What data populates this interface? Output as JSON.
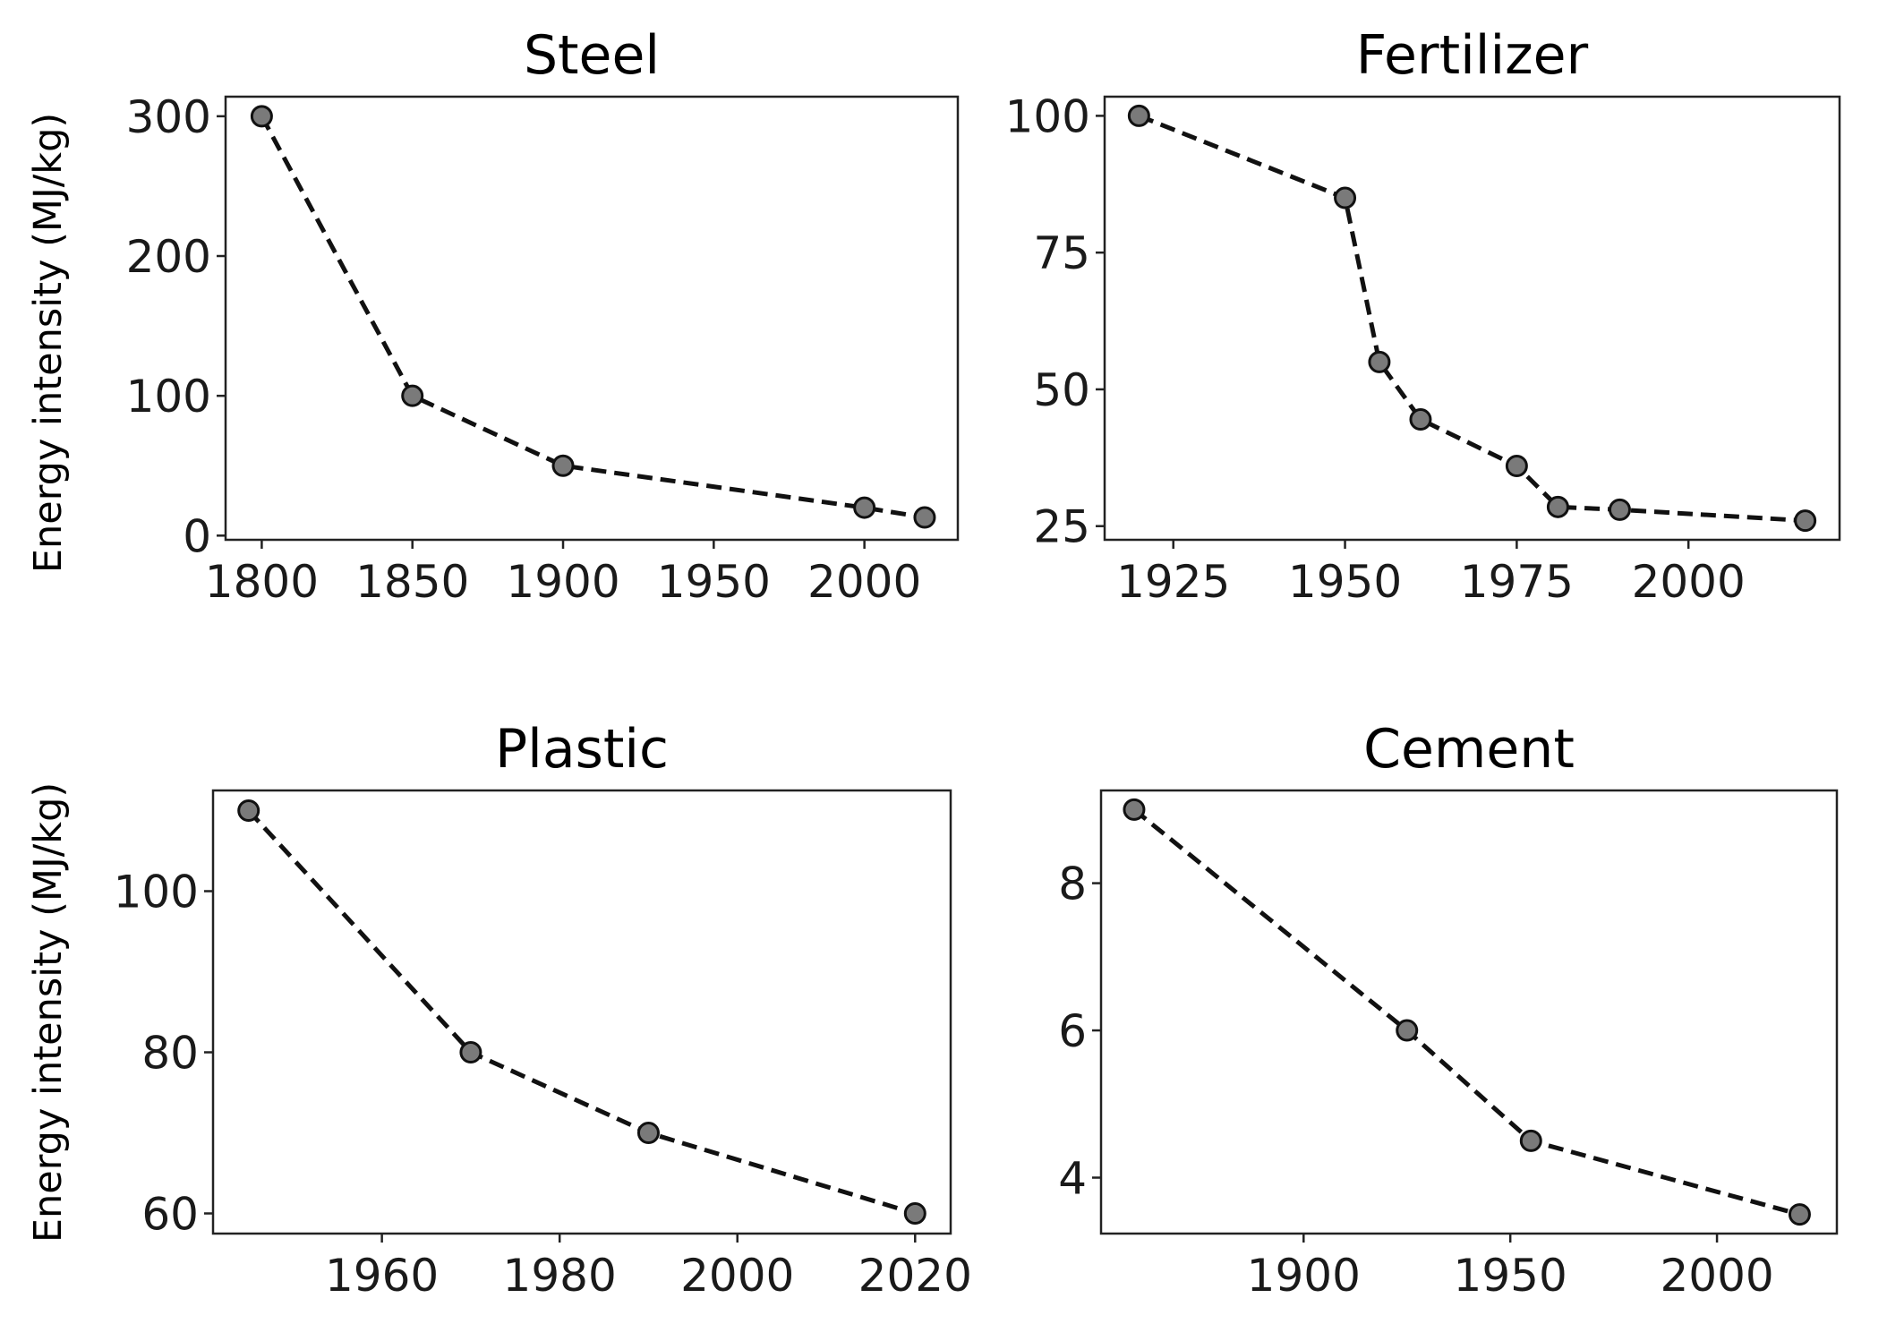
{
  "chart_data": [
    {
      "type": "line",
      "title": "Steel",
      "xlabel": "",
      "ylabel": "Energy intensity (MJ/kg)",
      "x": [
        1800,
        1850,
        1900,
        2000,
        2020
      ],
      "series": [
        {
          "values": [
            300,
            100,
            50,
            20,
            13
          ]
        }
      ],
      "xlim": [
        1788,
        2031
      ],
      "ylim": [
        -3,
        314
      ],
      "xticks": [
        1800,
        1850,
        1900,
        1950,
        2000
      ],
      "yticks": [
        0,
        100,
        200,
        300
      ],
      "xtick_labels": [
        "1800",
        "1850",
        "1900",
        "1950",
        "2000"
      ],
      "ytick_labels": [
        "0",
        "100",
        "200",
        "300"
      ],
      "line_style": "dashed",
      "marker": "circle",
      "marker_color": "#7a7a7a",
      "line_color": "#111111",
      "grid": false,
      "legend": false
    },
    {
      "type": "line",
      "title": "Fertilizer",
      "xlabel": "",
      "ylabel": "",
      "x": [
        1920,
        1950,
        1955,
        1961,
        1975,
        1981,
        1990,
        2017
      ],
      "series": [
        {
          "values": [
            100,
            85,
            55,
            44.5,
            36,
            28.5,
            28,
            26
          ]
        }
      ],
      "xlim": [
        1915,
        2022
      ],
      "ylim": [
        22.5,
        103.5
      ],
      "xticks": [
        1925,
        1950,
        1975,
        2000
      ],
      "yticks": [
        25,
        50,
        75,
        100
      ],
      "xtick_labels": [
        "1925",
        "1950",
        "1975",
        "2000"
      ],
      "ytick_labels": [
        "25",
        "50",
        "75",
        "100"
      ],
      "line_style": "dashed",
      "marker": "circle",
      "marker_color": "#7a7a7a",
      "line_color": "#111111",
      "grid": false,
      "legend": false
    },
    {
      "type": "line",
      "title": "Plastic",
      "xlabel": "",
      "ylabel": "Energy intensity (MJ/kg)",
      "x": [
        1945,
        1970,
        1990,
        2020
      ],
      "series": [
        {
          "values": [
            110,
            80,
            70,
            60
          ]
        }
      ],
      "xlim": [
        1941,
        2024
      ],
      "ylim": [
        57.5,
        112.5
      ],
      "xticks": [
        1960,
        1980,
        2000,
        2020
      ],
      "yticks": [
        60,
        80,
        100
      ],
      "xtick_labels": [
        "1960",
        "1980",
        "2000",
        "2020"
      ],
      "ytick_labels": [
        "60",
        "80",
        "100"
      ],
      "line_style": "dashed",
      "marker": "circle",
      "marker_color": "#7a7a7a",
      "line_color": "#111111",
      "grid": false,
      "legend": false
    },
    {
      "type": "line",
      "title": "Cement",
      "xlabel": "",
      "ylabel": "",
      "x": [
        1859,
        1925,
        1955,
        2020
      ],
      "series": [
        {
          "values": [
            9,
            6,
            4.5,
            3.5
          ]
        }
      ],
      "xlim": [
        1851,
        2029
      ],
      "ylim": [
        3.24,
        9.26
      ],
      "xticks": [
        1900,
        1950,
        2000
      ],
      "yticks": [
        4,
        6,
        8
      ],
      "xtick_labels": [
        "1900",
        "1950",
        "2000"
      ],
      "ytick_labels": [
        "4",
        "6",
        "8"
      ],
      "line_style": "dashed",
      "marker": "circle",
      "marker_color": "#7a7a7a",
      "line_color": "#111111",
      "grid": false,
      "legend": false
    }
  ]
}
